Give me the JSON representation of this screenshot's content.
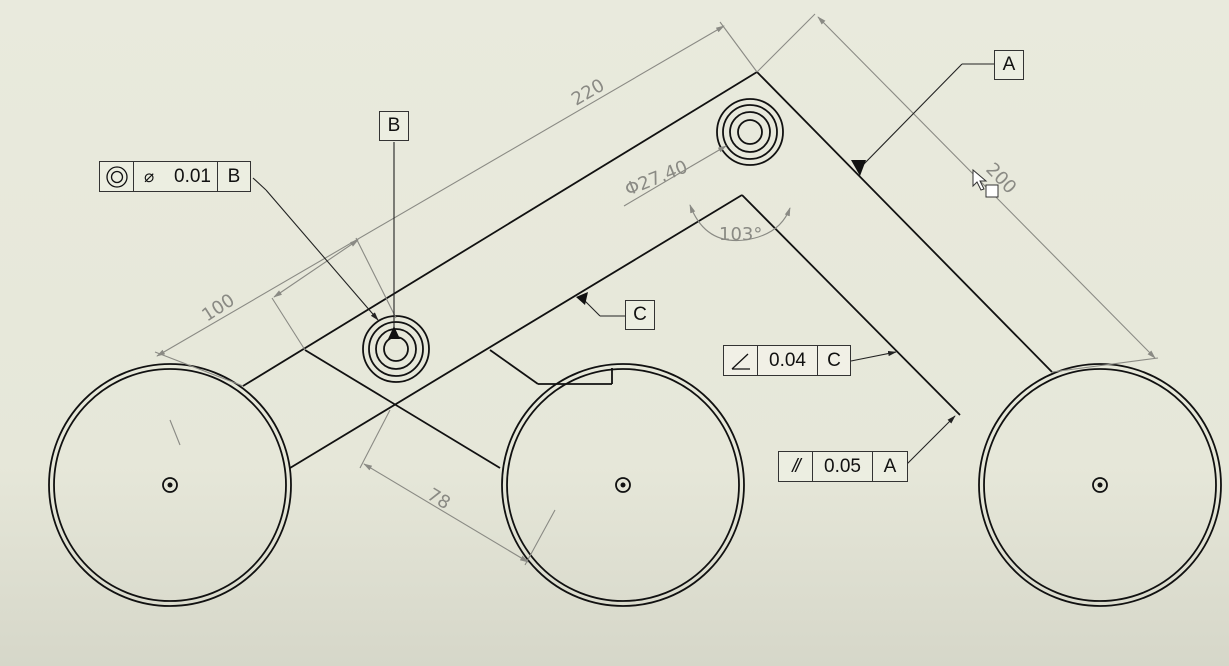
{
  "dimensions": {
    "length_top": "220",
    "length_right": "200",
    "length_left": "100",
    "length_bottom": "78",
    "diameter": "Φ27.40",
    "angle": "103°"
  },
  "fcf_concentricity": {
    "symbol": "concentricity-icon",
    "modifier": "⌀",
    "tolerance": "0.01",
    "datum": "B"
  },
  "fcf_angularity": {
    "symbol": "angularity-icon",
    "tolerance": "0.04",
    "datum": "C"
  },
  "fcf_parallelism": {
    "symbol": "//",
    "tolerance": "0.05",
    "datum": "A"
  },
  "datum_labels": {
    "a": "A",
    "b": "B",
    "c": "C"
  },
  "colors": {
    "background": "#e8e9dc",
    "geometry": "#111111",
    "dimension": "#8a8a84"
  }
}
